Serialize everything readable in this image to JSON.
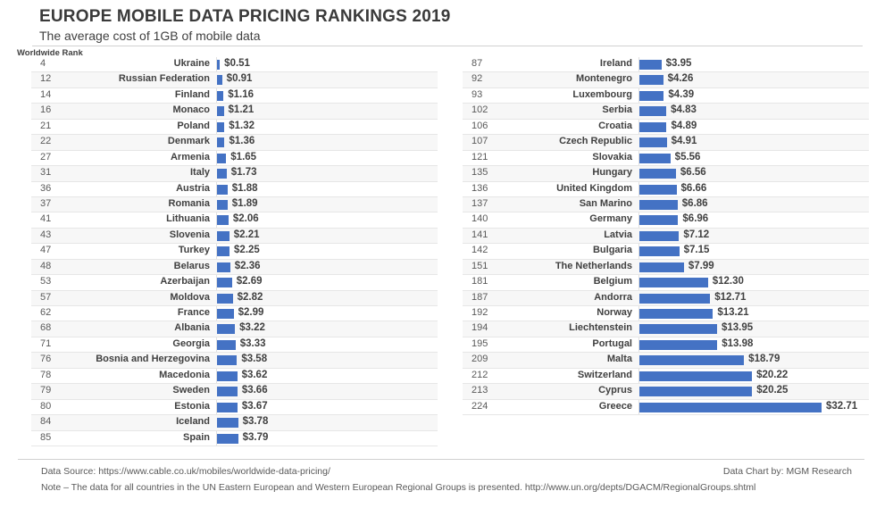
{
  "header": {
    "title": "EUROPE MOBILE DATA PRICING RANKINGS 2019",
    "subtitle": "The average cost of 1GB of mobile data",
    "rank_header": "Worldwide Rank"
  },
  "footer": {
    "source": "Data Source: https://www.cable.co.uk/mobiles/worldwide-data-pricing/",
    "credit": "Data Chart by: MGM Research",
    "note": "Note – The data for all countries in the UN Eastern European and Western European Regional Groups is presented. http://www.un.org/depts/DGACM/RegionalGroups.shtml"
  },
  "colors": {
    "bar": "#4472c4",
    "stripe": "#f7f7f7",
    "grid": "#e6e6e6"
  },
  "chart_data": {
    "type": "bar",
    "orientation": "horizontal",
    "title": "EUROPE MOBILE DATA PRICING RANKINGS 2019",
    "subtitle": "The average cost of 1GB of mobile data",
    "xlabel": "",
    "ylabel": "Worldwide Rank",
    "value_prefix": "$",
    "xlim": [
      0,
      32.71
    ],
    "grid": false,
    "panels": [
      {
        "rows": [
          {
            "rank": 4,
            "country": "Ukraine",
            "value": 0.51,
            "label": "$0.51"
          },
          {
            "rank": 12,
            "country": "Russian Federation",
            "value": 0.91,
            "label": "$0.91"
          },
          {
            "rank": 14,
            "country": "Finland",
            "value": 1.16,
            "label": "$1.16"
          },
          {
            "rank": 16,
            "country": "Monaco",
            "value": 1.21,
            "label": "$1.21"
          },
          {
            "rank": 21,
            "country": "Poland",
            "value": 1.32,
            "label": "$1.32"
          },
          {
            "rank": 22,
            "country": "Denmark",
            "value": 1.36,
            "label": "$1.36"
          },
          {
            "rank": 27,
            "country": "Armenia",
            "value": 1.65,
            "label": "$1.65"
          },
          {
            "rank": 31,
            "country": "Italy",
            "value": 1.73,
            "label": "$1.73"
          },
          {
            "rank": 36,
            "country": "Austria",
            "value": 1.88,
            "label": "$1.88"
          },
          {
            "rank": 37,
            "country": "Romania",
            "value": 1.89,
            "label": "$1.89"
          },
          {
            "rank": 41,
            "country": "Lithuania",
            "value": 2.06,
            "label": "$2.06"
          },
          {
            "rank": 43,
            "country": "Slovenia",
            "value": 2.21,
            "label": "$2.21"
          },
          {
            "rank": 47,
            "country": "Turkey",
            "value": 2.25,
            "label": "$2.25"
          },
          {
            "rank": 48,
            "country": "Belarus",
            "value": 2.36,
            "label": "$2.36"
          },
          {
            "rank": 53,
            "country": "Azerbaijan",
            "value": 2.69,
            "label": "$2.69"
          },
          {
            "rank": 57,
            "country": "Moldova",
            "value": 2.82,
            "label": "$2.82"
          },
          {
            "rank": 62,
            "country": "France",
            "value": 2.99,
            "label": "$2.99"
          },
          {
            "rank": 68,
            "country": "Albania",
            "value": 3.22,
            "label": "$3.22"
          },
          {
            "rank": 71,
            "country": "Georgia",
            "value": 3.33,
            "label": "$3.33"
          },
          {
            "rank": 76,
            "country": "Bosnia and Herzegovina",
            "value": 3.58,
            "label": "$3.58"
          },
          {
            "rank": 78,
            "country": "Macedonia",
            "value": 3.62,
            "label": "$3.62"
          },
          {
            "rank": 79,
            "country": "Sweden",
            "value": 3.66,
            "label": "$3.66"
          },
          {
            "rank": 80,
            "country": "Estonia",
            "value": 3.67,
            "label": "$3.67"
          },
          {
            "rank": 84,
            "country": "Iceland",
            "value": 3.78,
            "label": "$3.78"
          },
          {
            "rank": 85,
            "country": "Spain",
            "value": 3.79,
            "label": "$3.79"
          }
        ]
      },
      {
        "rows": [
          {
            "rank": 87,
            "country": "Ireland",
            "value": 3.95,
            "label": "$3.95"
          },
          {
            "rank": 92,
            "country": "Montenegro",
            "value": 4.26,
            "label": "$4.26"
          },
          {
            "rank": 93,
            "country": "Luxembourg",
            "value": 4.39,
            "label": "$4.39"
          },
          {
            "rank": 102,
            "country": "Serbia",
            "value": 4.83,
            "label": "$4.83"
          },
          {
            "rank": 106,
            "country": "Croatia",
            "value": 4.89,
            "label": "$4.89"
          },
          {
            "rank": 107,
            "country": "Czech Republic",
            "value": 4.91,
            "label": "$4.91"
          },
          {
            "rank": 121,
            "country": "Slovakia",
            "value": 5.56,
            "label": "$5.56"
          },
          {
            "rank": 135,
            "country": "Hungary",
            "value": 6.56,
            "label": "$6.56"
          },
          {
            "rank": 136,
            "country": "United Kingdom",
            "value": 6.66,
            "label": "$6.66"
          },
          {
            "rank": 137,
            "country": "San Marino",
            "value": 6.86,
            "label": "$6.86"
          },
          {
            "rank": 140,
            "country": "Germany",
            "value": 6.96,
            "label": "$6.96"
          },
          {
            "rank": 141,
            "country": "Latvia",
            "value": 7.12,
            "label": "$7.12"
          },
          {
            "rank": 142,
            "country": "Bulgaria",
            "value": 7.15,
            "label": "$7.15"
          },
          {
            "rank": 151,
            "country": "The Netherlands",
            "value": 7.99,
            "label": "$7.99"
          },
          {
            "rank": 181,
            "country": "Belgium",
            "value": 12.3,
            "label": "$12.30"
          },
          {
            "rank": 187,
            "country": "Andorra",
            "value": 12.71,
            "label": "$12.71"
          },
          {
            "rank": 192,
            "country": "Norway",
            "value": 13.21,
            "label": "$13.21"
          },
          {
            "rank": 194,
            "country": "Liechtenstein",
            "value": 13.95,
            "label": "$13.95"
          },
          {
            "rank": 195,
            "country": "Portugal",
            "value": 13.98,
            "label": "$13.98"
          },
          {
            "rank": 209,
            "country": "Malta",
            "value": 18.79,
            "label": "$18.79"
          },
          {
            "rank": 212,
            "country": "Switzerland",
            "value": 20.22,
            "label": "$20.22"
          },
          {
            "rank": 213,
            "country": "Cyprus",
            "value": 20.25,
            "label": "$20.25"
          },
          {
            "rank": 224,
            "country": "Greece",
            "value": 32.71,
            "label": "$32.71"
          }
        ]
      }
    ]
  }
}
